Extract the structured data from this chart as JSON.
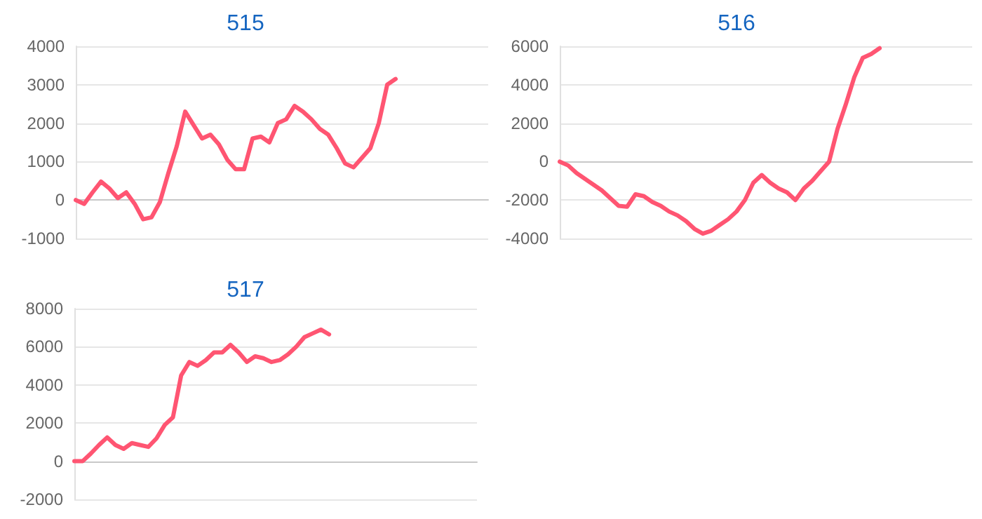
{
  "chart_data": [
    {
      "type": "line",
      "title": "515",
      "categories": [
        null,
        null,
        null,
        null,
        null,
        null,
        null,
        null,
        null,
        null,
        null,
        null,
        null,
        null,
        null,
        null,
        null,
        null,
        null,
        null,
        null,
        null,
        null,
        null,
        null,
        null,
        null,
        null,
        null,
        null,
        null,
        null,
        null,
        null,
        null,
        null,
        null,
        null,
        null,
        null,
        null,
        null,
        null,
        null,
        null,
        null,
        null,
        null,
        null,
        null
      ],
      "series": [
        {
          "color": "#ff5572",
          "values": [
            0,
            -100,
            200,
            480,
            300,
            50,
            200,
            -100,
            -500,
            -450,
            -50,
            700,
            1400,
            2300,
            1950,
            1600,
            1700,
            1450,
            1050,
            800,
            800,
            1600,
            1650,
            1500,
            2000,
            2100,
            2450,
            2300,
            2100,
            1850,
            1700,
            1350,
            950,
            850,
            1100,
            1350,
            2000,
            3000,
            3150,
            null,
            null,
            null,
            null,
            null,
            null,
            null,
            null,
            null,
            null,
            null
          ]
        }
      ],
      "ylim": [
        -1000,
        4000
      ],
      "yticks": [
        -1000,
        0,
        1000,
        2000,
        3000,
        4000
      ],
      "grid": "y",
      "line_style": "solid",
      "tick_labels": "y"
    },
    {
      "type": "line",
      "title": "516",
      "categories": [
        null,
        null,
        null,
        null,
        null,
        null,
        null,
        null,
        null,
        null,
        null,
        null,
        null,
        null,
        null,
        null,
        null,
        null,
        null,
        null,
        null,
        null,
        null,
        null,
        null,
        null,
        null,
        null,
        null,
        null,
        null,
        null,
        null,
        null,
        null,
        null,
        null,
        null,
        null,
        null,
        null,
        null,
        null,
        null,
        null,
        null,
        null,
        null,
        null,
        null
      ],
      "series": [
        {
          "color": "#ff5572",
          "values": [
            0,
            -200,
            -600,
            -900,
            -1200,
            -1500,
            -1900,
            -2300,
            -2350,
            -1700,
            -1800,
            -2100,
            -2300,
            -2600,
            -2800,
            -3100,
            -3500,
            -3750,
            -3600,
            -3300,
            -3000,
            -2600,
            -2000,
            -1100,
            -700,
            -1100,
            -1400,
            -1600,
            -2000,
            -1400,
            -1000,
            -500,
            0,
            1700,
            3000,
            4400,
            5400,
            5600,
            5900,
            null,
            null,
            null,
            null,
            null,
            null,
            null,
            null,
            null,
            null,
            null
          ]
        }
      ],
      "ylim": [
        -4000,
        6000
      ],
      "yticks": [
        -4000,
        -2000,
        0,
        2000,
        4000,
        6000
      ],
      "grid": "y",
      "line_style": "solid",
      "tick_labels": "y"
    },
    {
      "type": "line",
      "title": "517",
      "categories": [
        null,
        null,
        null,
        null,
        null,
        null,
        null,
        null,
        null,
        null,
        null,
        null,
        null,
        null,
        null,
        null,
        null,
        null,
        null,
        null,
        null,
        null,
        null,
        null,
        null,
        null,
        null,
        null,
        null,
        null,
        null,
        null,
        null,
        null,
        null,
        null,
        null,
        null,
        null,
        null,
        null,
        null,
        null,
        null,
        null,
        null,
        null,
        null,
        null,
        null
      ],
      "series": [
        {
          "color": "#ff5572",
          "values": [
            0,
            0,
            400,
            850,
            1250,
            850,
            650,
            950,
            850,
            750,
            1200,
            1900,
            2300,
            4500,
            5200,
            5000,
            5300,
            5700,
            5700,
            6100,
            5700,
            5200,
            5500,
            5400,
            5200,
            5300,
            5600,
            6000,
            6500,
            6700,
            6900,
            6650,
            null,
            null,
            null,
            null,
            null,
            null,
            null,
            null,
            null,
            null,
            null,
            null,
            null,
            null,
            null,
            null,
            null,
            null
          ]
        }
      ],
      "ylim": [
        -2000,
        8000
      ],
      "yticks": [
        -2000,
        0,
        2000,
        4000,
        6000,
        8000
      ],
      "grid": "y",
      "line_style": "solid",
      "tick_labels": "y"
    }
  ]
}
